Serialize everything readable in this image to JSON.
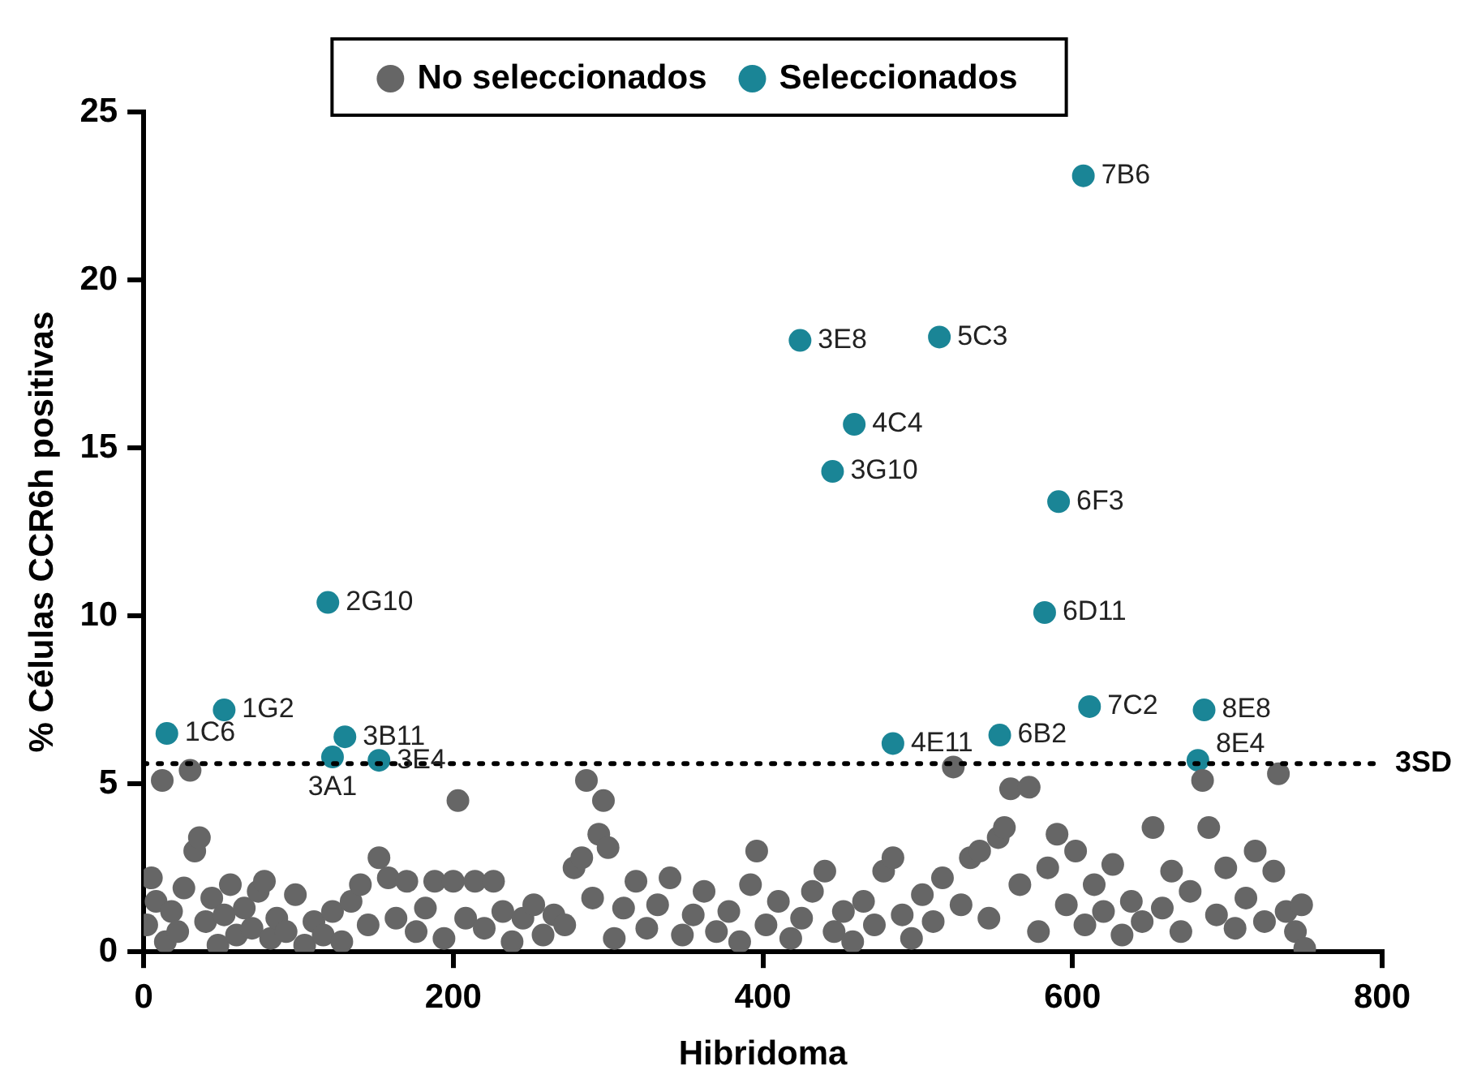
{
  "chart_data": {
    "type": "scatter",
    "xlabel": "Hibridoma",
    "ylabel": "% Células CCR6h positivas",
    "xlim": [
      0,
      800
    ],
    "xticks": [
      0,
      200,
      400,
      600,
      800
    ],
    "ylim": [
      0,
      25
    ],
    "yticks": [
      0,
      5,
      10,
      15,
      20,
      25
    ],
    "legend": "top",
    "grid": false,
    "marker": "circle",
    "series": [
      {
        "name": "No seleccionados",
        "color": "#666666",
        "x": [
          2,
          5,
          8,
          12,
          14,
          18,
          22,
          26,
          30,
          33,
          36,
          40,
          44,
          48,
          52,
          56,
          60,
          65,
          70,
          74,
          78,
          82,
          86,
          92,
          98,
          104,
          110,
          116,
          122,
          128,
          134,
          140,
          145,
          152,
          158,
          163,
          170,
          176,
          182,
          188,
          194,
          200,
          203,
          208,
          214,
          220,
          226,
          232,
          238,
          245,
          252,
          258,
          265,
          272,
          278,
          283,
          286,
          290,
          294,
          297,
          300,
          304,
          310,
          318,
          325,
          332,
          340,
          348,
          355,
          362,
          370,
          378,
          385,
          392,
          396,
          402,
          410,
          418,
          425,
          432,
          440,
          446,
          452,
          458,
          465,
          472,
          478,
          484,
          490,
          496,
          503,
          510,
          516,
          523,
          528,
          534,
          540,
          546,
          552,
          556,
          560,
          566,
          572,
          578,
          584,
          590,
          596,
          602,
          608,
          614,
          620,
          626,
          632,
          638,
          645,
          652,
          658,
          664,
          670,
          676,
          684,
          688,
          693,
          699,
          705,
          712,
          718,
          724,
          730,
          733,
          738,
          744,
          748,
          750
        ],
        "values": [
          0.8,
          2.2,
          1.5,
          5.1,
          0.3,
          1.2,
          0.6,
          1.9,
          5.4,
          3.0,
          3.4,
          0.9,
          1.6,
          0.2,
          1.1,
          2.0,
          0.5,
          1.3,
          0.7,
          1.8,
          2.1,
          0.4,
          1.0,
          0.6,
          1.7,
          0.2,
          0.9,
          0.5,
          1.2,
          0.3,
          1.5,
          2.0,
          0.8,
          2.8,
          2.2,
          1.0,
          2.1,
          0.6,
          1.3,
          2.1,
          0.4,
          2.1,
          4.5,
          1.0,
          2.1,
          0.7,
          2.1,
          1.2,
          0.3,
          1.0,
          1.4,
          0.5,
          1.1,
          0.8,
          2.5,
          2.8,
          5.1,
          1.6,
          3.5,
          4.5,
          3.1,
          0.4,
          1.3,
          2.1,
          0.7,
          1.4,
          2.2,
          0.5,
          1.1,
          1.8,
          0.6,
          1.2,
          0.3,
          2.0,
          3.0,
          0.8,
          1.5,
          0.4,
          1.0,
          1.8,
          2.4,
          0.6,
          1.2,
          0.3,
          1.5,
          0.8,
          2.4,
          2.8,
          1.1,
          0.4,
          1.7,
          0.9,
          2.2,
          5.5,
          1.4,
          2.8,
          3.0,
          1.0,
          3.4,
          3.7,
          4.85,
          2.0,
          4.9,
          0.6,
          2.5,
          3.5,
          1.4,
          3.0,
          0.8,
          2.0,
          1.2,
          2.6,
          0.5,
          1.5,
          0.9,
          3.7,
          1.3,
          2.4,
          0.6,
          1.8,
          5.1,
          3.7,
          1.1,
          2.5,
          0.7,
          1.6,
          3.0,
          0.9,
          2.4,
          5.3,
          1.2,
          0.6,
          1.4,
          0.1
        ]
      },
      {
        "name": "Seleccionados",
        "color": "#1a8596",
        "x": [
          15,
          52,
          119,
          122,
          130,
          152,
          424,
          445,
          459,
          484,
          514,
          553,
          582,
          591,
          607,
          611,
          681,
          685
        ],
        "values": [
          6.5,
          7.2,
          10.4,
          5.8,
          6.4,
          5.7,
          18.2,
          14.3,
          15.7,
          6.2,
          18.3,
          6.45,
          10.1,
          13.4,
          23.1,
          7.3,
          5.7,
          7.2
        ]
      }
    ],
    "ref_lines": [
      {
        "axis": "y",
        "value": 5.6,
        "label": "3SD",
        "color": "#000000",
        "line_style": "dotted"
      }
    ],
    "annotations": [
      {
        "text": "1C6",
        "x": 15,
        "y": 6.5
      },
      {
        "text": "1G2",
        "x": 52,
        "y": 7.2
      },
      {
        "text": "2G10",
        "x": 119,
        "y": 10.4
      },
      {
        "text": "3B11",
        "x": 130,
        "y": 6.4
      },
      {
        "text": "3A1",
        "x": 122,
        "y": 5.8
      },
      {
        "text": "3E4",
        "x": 152,
        "y": 5.7
      },
      {
        "text": "3E8",
        "x": 424,
        "y": 18.2
      },
      {
        "text": "3G10",
        "x": 445,
        "y": 14.3
      },
      {
        "text": "4C4",
        "x": 459,
        "y": 15.7
      },
      {
        "text": "4E11",
        "x": 484,
        "y": 6.2
      },
      {
        "text": "5C3",
        "x": 514,
        "y": 18.3
      },
      {
        "text": "6B2",
        "x": 553,
        "y": 6.45
      },
      {
        "text": "6D11",
        "x": 582,
        "y": 10.1
      },
      {
        "text": "6F3",
        "x": 591,
        "y": 13.4
      },
      {
        "text": "7B6",
        "x": 607,
        "y": 23.1
      },
      {
        "text": "7C2",
        "x": 611,
        "y": 7.3
      },
      {
        "text": "8E8",
        "x": 685,
        "y": 7.2
      },
      {
        "text": "8E4",
        "x": 681,
        "y": 5.7
      }
    ]
  }
}
